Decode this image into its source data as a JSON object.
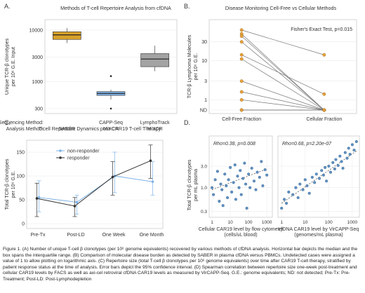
{
  "panels": {
    "a": "A.",
    "b": "B.",
    "c": "C.",
    "d": "D."
  },
  "chart_data": [
    {
      "id": "A",
      "type": "box",
      "title": "Methods of T-cell Repertoire Analysis from cfDNA",
      "ylabel": [
        "Unique TCR-β clonotypes",
        "per 10⁶ G.E. Input"
      ],
      "yscale": "log",
      "ylim": [
        240,
        16000
      ],
      "yticks": [
        300,
        1000,
        3000,
        10000
      ],
      "row_labels": [
        "Sequencing Method:",
        "Analysis Method:"
      ],
      "categories": [
        {
          "seq": "",
          "analysis": "SABER",
          "color": "#d8a12a",
          "box": {
            "min": 5600,
            "q1": 6600,
            "median": 8100,
            "q3": 9300,
            "max": 11000
          },
          "outliers": []
        },
        {
          "seq": "CAPP-Seq",
          "analysis": "MiXCR",
          "color": "#7fb3e6",
          "box": {
            "min": 450,
            "q1": 540,
            "median": 590,
            "q3": 640,
            "max": 700
          },
          "outliers": [
            1280,
            300
          ]
        },
        {
          "seq": "LymphoTrack",
          "analysis": "MiXCR",
          "color": "#a3a3a3",
          "box": {
            "min": 1600,
            "q1": 1950,
            "median": 2750,
            "q3": 3500,
            "max": 5000
          },
          "outliers": []
        }
      ]
    },
    {
      "id": "B",
      "type": "paired-dot",
      "title": "Disease Monitoring Cell-Free vs Cellular Methods",
      "ylabel": [
        "TCR-β Lymphoma Molecules",
        "per 10⁶ G.E."
      ],
      "yscale": "log",
      "yticks": [
        "30",
        "10",
        "3",
        "1",
        "ND"
      ],
      "categories": [
        "Cell-Free Fraction",
        "Cellular Fraction"
      ],
      "annotation": "Fisher's Exact Test, p=0.015",
      "point_color": "#e8a13a",
      "pairs": [
        [
          60,
          14
        ],
        [
          48,
          "ND"
        ],
        [
          42,
          "ND"
        ],
        [
          30,
          "ND"
        ],
        [
          14,
          1.4
        ],
        [
          11,
          "ND"
        ],
        [
          3,
          "ND"
        ],
        [
          1.6,
          "ND"
        ],
        [
          1,
          "ND"
        ],
        [
          "ND",
          "ND"
        ],
        [
          "ND",
          "ND"
        ]
      ]
    },
    {
      "id": "C",
      "type": "line",
      "title": "T-cell Repertoire Dynamics post-CAR19 T-cell Therapy",
      "ylabel": [
        "Total TCR-β clonotypes",
        "per 10⁶ G.E."
      ],
      "yticks": [
        0,
        50,
        100,
        150
      ],
      "ylim": [
        -10,
        175
      ],
      "categories": [
        "Pre-Tx",
        "Post-LD",
        "One Week",
        "One Month"
      ],
      "series": [
        {
          "name": "non-responder",
          "color": "#7fb3e6",
          "values": [
            55,
            45,
            100,
            88
          ],
          "err": [
            [
              25,
              90
            ],
            [
              20,
              60
            ],
            [
              65,
              150
            ],
            [
              60,
              130
            ]
          ]
        },
        {
          "name": "responder",
          "color": "#333333",
          "values": [
            53,
            37,
            98,
            132
          ],
          "err": [
            [
              15,
              85
            ],
            [
              15,
              55
            ],
            [
              60,
              130
            ],
            [
              95,
              165
            ]
          ]
        }
      ]
    },
    {
      "id": "D1",
      "type": "scatter",
      "annotation": "Rho=0.38, p=0.008",
      "xlabel": [
        "Cellular CAR19 level by flow cytometry",
        "(cells/uL blood)"
      ],
      "ylabel": [
        "Total TCR-β clonotypes",
        "per mL plasma"
      ],
      "xticks": [
        "1",
        "10",
        "100",
        "1000"
      ],
      "yticks": [
        "3.0",
        "1.0",
        "0.3"
      ],
      "point_color": "#5f8fbf",
      "points": [
        [
          1,
          1.0
        ],
        [
          1.2,
          0.7
        ],
        [
          1.5,
          1.5
        ],
        [
          2,
          2.3
        ],
        [
          2.5,
          0.5
        ],
        [
          3,
          1.2
        ],
        [
          3.5,
          0.9
        ],
        [
          4,
          0.4
        ],
        [
          5,
          2.0
        ],
        [
          6,
          1.1
        ],
        [
          7,
          0.6
        ],
        [
          8,
          1.5
        ],
        [
          10,
          2.8
        ],
        [
          12,
          0.8
        ],
        [
          15,
          1.3
        ],
        [
          18,
          3.2
        ],
        [
          20,
          0.55
        ],
        [
          25,
          1.8
        ],
        [
          30,
          1.0
        ],
        [
          35,
          2.4
        ],
        [
          40,
          0.7
        ],
        [
          50,
          1.6
        ],
        [
          60,
          3.5
        ],
        [
          70,
          1.2
        ],
        [
          80,
          0.35
        ],
        [
          100,
          2.0
        ],
        [
          120,
          1.0
        ],
        [
          150,
          2.7
        ],
        [
          200,
          1.4
        ],
        [
          250,
          0.9
        ],
        [
          300,
          2.2
        ],
        [
          400,
          1.7
        ],
        [
          500,
          3.8
        ],
        [
          600,
          1.1
        ],
        [
          800,
          2.5
        ],
        [
          1000,
          1.9
        ]
      ],
      "trend": [
        [
          1,
          0.9
        ],
        [
          1000,
          2.6
        ]
      ]
    },
    {
      "id": "D2",
      "type": "scatter",
      "annotation": "Rho=0.68, p=2.20e-07",
      "xlabel": [
        "cfDNA CAR19 level by VirCAPP-Seq",
        "(genomes/mL plasma)"
      ],
      "xticks": [
        "1",
        "10",
        "100",
        "1000"
      ],
      "point_color": "#5f8fbf",
      "points": [
        [
          1,
          0.35
        ],
        [
          1.3,
          0.55
        ],
        [
          1.6,
          0.45
        ],
        [
          2,
          0.8
        ],
        [
          3,
          0.7
        ],
        [
          4,
          1.0
        ],
        [
          5,
          0.6
        ],
        [
          6,
          1.2
        ],
        [
          8,
          0.9
        ],
        [
          10,
          1.5
        ],
        [
          12,
          1.1
        ],
        [
          15,
          0.75
        ],
        [
          20,
          1.7
        ],
        [
          25,
          1.3
        ],
        [
          30,
          2.0
        ],
        [
          40,
          1.6
        ],
        [
          50,
          2.4
        ],
        [
          60,
          1.9
        ],
        [
          70,
          2.8
        ],
        [
          80,
          1.4
        ],
        [
          100,
          3.0
        ],
        [
          120,
          2.2
        ],
        [
          150,
          3.6
        ],
        [
          180,
          2.6
        ],
        [
          200,
          4.2
        ],
        [
          250,
          3.1
        ],
        [
          300,
          5.0
        ],
        [
          350,
          3.8
        ],
        [
          400,
          2.7
        ],
        [
          500,
          6.0
        ],
        [
          600,
          4.5
        ],
        [
          700,
          7.5
        ],
        [
          800,
          5.5
        ],
        [
          1000,
          9.0
        ],
        [
          1200,
          6.8
        ],
        [
          1500,
          10.5
        ]
      ],
      "trend": [
        [
          1,
          0.45
        ],
        [
          1500,
          6.5
        ]
      ]
    }
  ],
  "caption": "Figure 1. (A) Number of unique T-cell β clonotypes (per 10⁶ genome equivalents) recovered by various methods of cfDNA analysis. Horizontal bar depicts the median and the box spans the interquartile range. (B) Comparison of molecular disease burden as detected by SABER in plasma cfDNA versus PBMCs. Undetected cases were assigned a value of 1 to allow plotting on logarithmic axis. (C) Repertoire size (total T-cell β clonotypes per 10⁶ genome equivalents) over time after CAR19 T-cell therapy, stratified by patient response status at the time of analysis. Error bars depict the 95% confidence interval. (D) Spearman correlation between repertoire size one-week post-treatment and cellular CAR19 levels by FACS as well as axi-cel retroviral cfDNA CAR19 levels as measured by VirCAPP-Seq. G.E.: genome equivalents; ND: not detected; Pre-Tx: Pre-Treatment; Post-LD: Post-Lymphodepletion"
}
